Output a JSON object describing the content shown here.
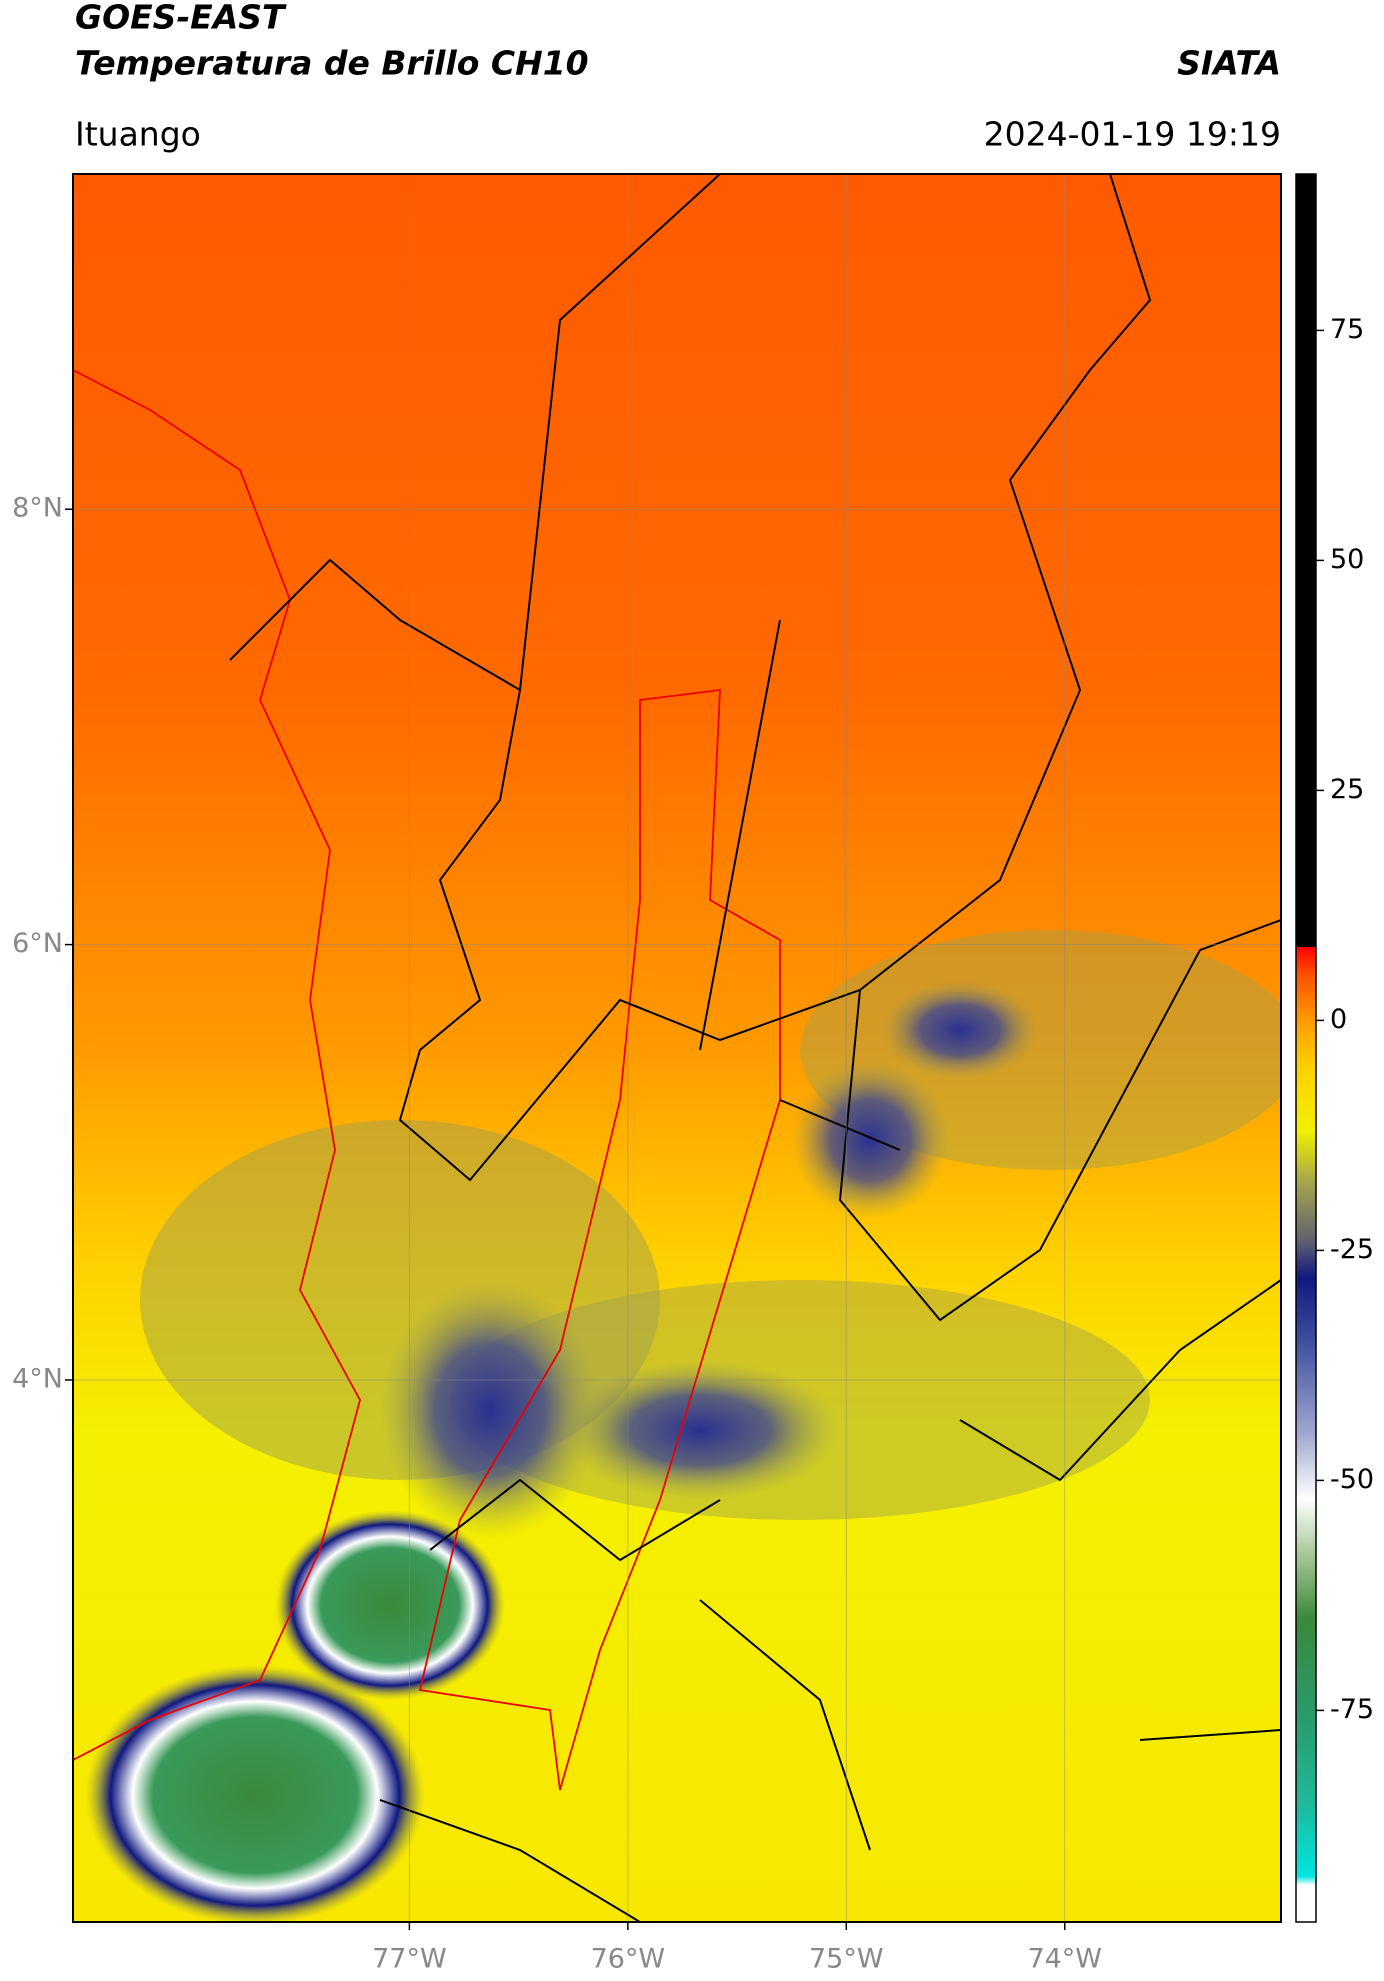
{
  "header": {
    "title": "GOES-EAST",
    "subtitle": "Temperatura de Brillo CH10",
    "source": "SIATA",
    "location": "Ituango",
    "datetime": "2024-01-19 19:19"
  },
  "map": {
    "lat_lim": [
      1.51,
      9.54
    ],
    "lon_lim": [
      -78.54,
      -73.01
    ],
    "lat_ticks": [
      {
        "value": 8,
        "label": "8°N"
      },
      {
        "value": 6,
        "label": "6°N"
      },
      {
        "value": 4,
        "label": "4°N"
      }
    ],
    "lon_ticks": [
      {
        "value": -77,
        "label": "77°W"
      },
      {
        "value": -76,
        "label": "76°W"
      },
      {
        "value": -75,
        "label": "75°W"
      },
      {
        "value": -74,
        "label": "74°W"
      }
    ],
    "grid": true
  },
  "colorbar": {
    "lim": [
      -98,
      92
    ],
    "ticks": [
      75,
      50,
      25,
      0,
      -25,
      -50,
      -75
    ],
    "colormap": [
      {
        "value": -98,
        "color": "#ffffff"
      },
      {
        "value": -94,
        "color": "#ffffff"
      },
      {
        "value": -93,
        "color": "#00e5e0"
      },
      {
        "value": -85,
        "color": "#1fb898"
      },
      {
        "value": -75,
        "color": "#2a9a6a"
      },
      {
        "value": -65,
        "color": "#3a8a3a"
      },
      {
        "value": -58,
        "color": "#a8c898"
      },
      {
        "value": -52,
        "color": "#ffffff"
      },
      {
        "value": -45,
        "color": "#a0a8d0"
      },
      {
        "value": -35,
        "color": "#4050a0"
      },
      {
        "value": -28,
        "color": "#101880"
      },
      {
        "value": -24,
        "color": "#606070"
      },
      {
        "value": -18,
        "color": "#a0a050"
      },
      {
        "value": -12,
        "color": "#f0f000"
      },
      {
        "value": -5,
        "color": "#ffd000"
      },
      {
        "value": 0,
        "color": "#ff9a00"
      },
      {
        "value": 5,
        "color": "#ff5000"
      },
      {
        "value": 8,
        "color": "#ff0000"
      },
      {
        "value": 8,
        "color": "#000000"
      },
      {
        "value": 92,
        "color": "#000000"
      }
    ]
  }
}
